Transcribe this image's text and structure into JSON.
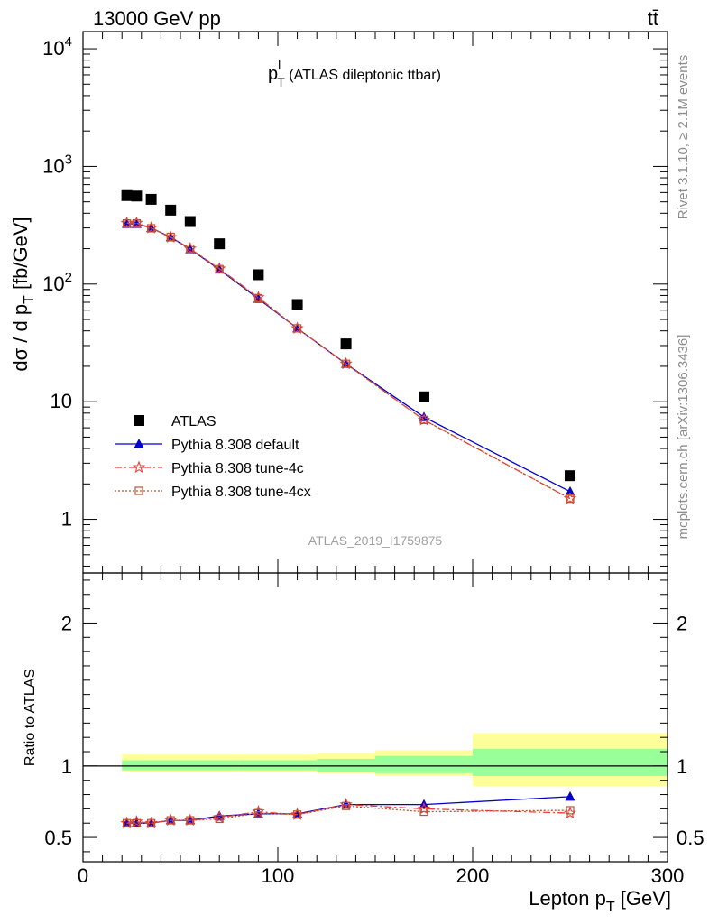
{
  "header": {
    "left": "13000 GeV pp",
    "right": "tt̄"
  },
  "side_labels": {
    "rivet": "Rivet 3.1.10, ≥ 2.1M events",
    "mcplots": "mcplots.cern.ch [arXiv:1306.3436]"
  },
  "plot_title": {
    "main": "p",
    "sup": "l",
    "sub": "T",
    "rest": " (ATLAS dileptonic ttbar)"
  },
  "analysis_id": "ATLAS_2019_I1759875",
  "y_axis_label": "dσ / d p  [fb/GeV]",
  "y_axis_label_parts": {
    "pre": "dσ / d p",
    "sub": "T",
    "post": " [fb/GeV]"
  },
  "ratio_axis_label": "Ratio to ATLAS",
  "x_axis_label_parts": {
    "pre": "Lepton p",
    "sub": "T",
    "post": " [GeV]"
  },
  "colors": {
    "data": "#000000",
    "default": "#0000cc",
    "tune4c": "#ee3b3b",
    "tune4cx": "#c0532e",
    "band_inner": "#99ff99",
    "band_outer": "#ffff99"
  },
  "chart_data": {
    "type": "scatter",
    "x_label": "Lepton pT [GeV]",
    "y_label": "dσ / d pT [fb/GeV]",
    "x_range": [
      0,
      300
    ],
    "y_scale": "log",
    "y_range": [
      0.35,
      14000
    ],
    "y_ticks": [
      {
        "v": 1,
        "label": "1"
      },
      {
        "v": 10,
        "label": "10"
      },
      {
        "v": 100,
        "label": "10^2"
      },
      {
        "v": 1000,
        "label": "10^3"
      },
      {
        "v": 10000,
        "label": "10^4"
      }
    ],
    "x_ticks": [
      0,
      100,
      200,
      300
    ],
    "legend_position": "lower-left",
    "bin_edges": [
      20,
      25,
      30,
      40,
      50,
      60,
      80,
      100,
      120,
      150,
      200,
      300
    ],
    "x": [
      22.5,
      27.5,
      35,
      45,
      55,
      70,
      90,
      110,
      135,
      175,
      250
    ],
    "series": [
      {
        "name": "ATLAS",
        "key": "data",
        "marker": "square",
        "values": [
          565,
          560,
          525,
          425,
          340,
          220,
          120,
          67,
          31,
          11,
          2.35
        ]
      },
      {
        "name": "Pythia 8.308 default",
        "key": "default",
        "marker": "triangle",
        "line": "solid",
        "values": [
          325,
          325,
          300,
          250,
          198,
          133,
          75,
          42,
          21,
          7.4,
          1.72
        ]
      },
      {
        "name": "Pythia 8.308 tune-4c",
        "key": "tune4c",
        "marker": "star",
        "line": "dashdot",
        "values": [
          330,
          330,
          300,
          250,
          200,
          135,
          77,
          42,
          21,
          7.0,
          1.5
        ]
      },
      {
        "name": "Pythia 8.308 tune-4cx",
        "key": "tune4cx",
        "marker": "open-square",
        "line": "dotted",
        "values": [
          328,
          328,
          298,
          252,
          200,
          134,
          76,
          42,
          21,
          7.0,
          1.5
        ]
      }
    ],
    "ratio": {
      "y_range": [
        0.33,
        2.35
      ],
      "y_ticks": [
        0.5,
        1,
        2
      ],
      "reference": 1,
      "band_edges": [
        20,
        80,
        120,
        150,
        200,
        300
      ],
      "band_inner": [
        [
          0.97,
          1.04
        ],
        [
          0.97,
          1.04
        ],
        [
          0.96,
          1.05
        ],
        [
          0.95,
          1.07
        ],
        [
          0.93,
          1.12
        ]
      ],
      "band_outer": [
        [
          0.96,
          1.08
        ],
        [
          0.96,
          1.08
        ],
        [
          0.95,
          1.09
        ],
        [
          0.93,
          1.11
        ],
        [
          0.86,
          1.23
        ]
      ],
      "series": [
        {
          "key": "default",
          "values": [
            0.6,
            0.6,
            0.6,
            0.62,
            0.62,
            0.65,
            0.665,
            0.665,
            0.73,
            0.73,
            0.785
          ]
        },
        {
          "key": "tune4c",
          "values": [
            0.6,
            0.61,
            0.6,
            0.62,
            0.62,
            0.64,
            0.68,
            0.66,
            0.73,
            0.7,
            0.67
          ]
        },
        {
          "key": "tune4cx",
          "values": [
            0.6,
            0.6,
            0.6,
            0.62,
            0.62,
            0.63,
            0.67,
            0.66,
            0.72,
            0.68,
            0.69
          ]
        }
      ]
    }
  }
}
